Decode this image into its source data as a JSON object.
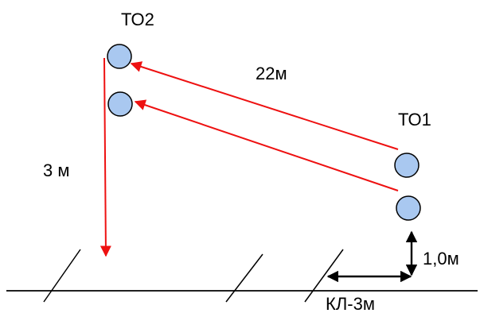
{
  "labels": {
    "to2": "ТО2",
    "to1": "ТО1",
    "span_length": "22м",
    "drop_height": "3 м",
    "height_clearance": "1,0м",
    "cable_label": "КЛ-3м"
  },
  "colors": {
    "wire": "#ee1111",
    "node_fill": "#a9c8f0",
    "node_stroke": "#000000",
    "line": "#000000",
    "background": "#ffffff"
  }
}
